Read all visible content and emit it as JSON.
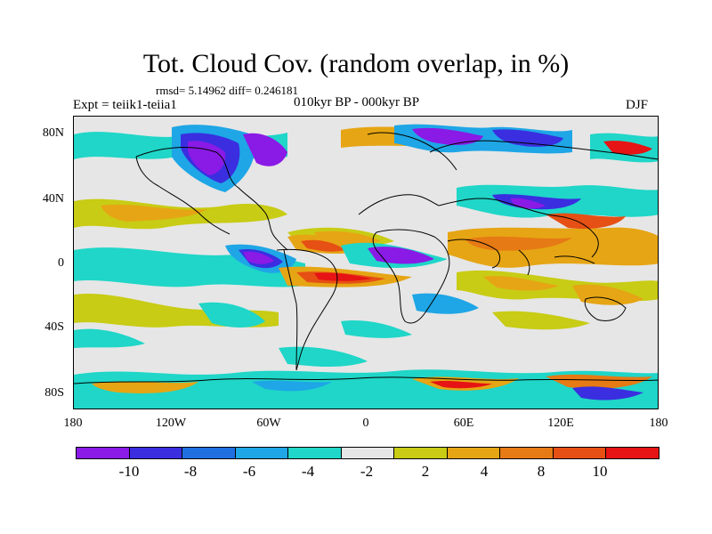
{
  "header": {
    "title": "Tot. Cloud Cov. (random overlap, in %)",
    "stats": "rmsd= 5.14962 diff= 0.246181",
    "expt": "Expt = teiik1-teiia1",
    "period": "010kyr BP - 000kyr BP",
    "season": "DJF"
  },
  "map": {
    "projection": "cylindrical equidistant",
    "field": "cloud cover difference",
    "y_labels": [
      "80N",
      "40N",
      "0",
      "40S",
      "80S"
    ],
    "x_labels": [
      "180",
      "120W",
      "60W",
      "0",
      "60E",
      "120E",
      "180"
    ]
  },
  "colorbar": {
    "colors": [
      "#8a1ae6",
      "#3a2ee0",
      "#1f6fe0",
      "#1ea6e6",
      "#1fd6c8",
      "#e6e6e6",
      "#c8cc14",
      "#e6a514",
      "#e67a14",
      "#e65014",
      "#e61414"
    ],
    "labels": [
      "-10",
      "-8",
      "-6",
      "-4",
      "-2",
      "2",
      "4",
      "8",
      "10"
    ]
  }
}
